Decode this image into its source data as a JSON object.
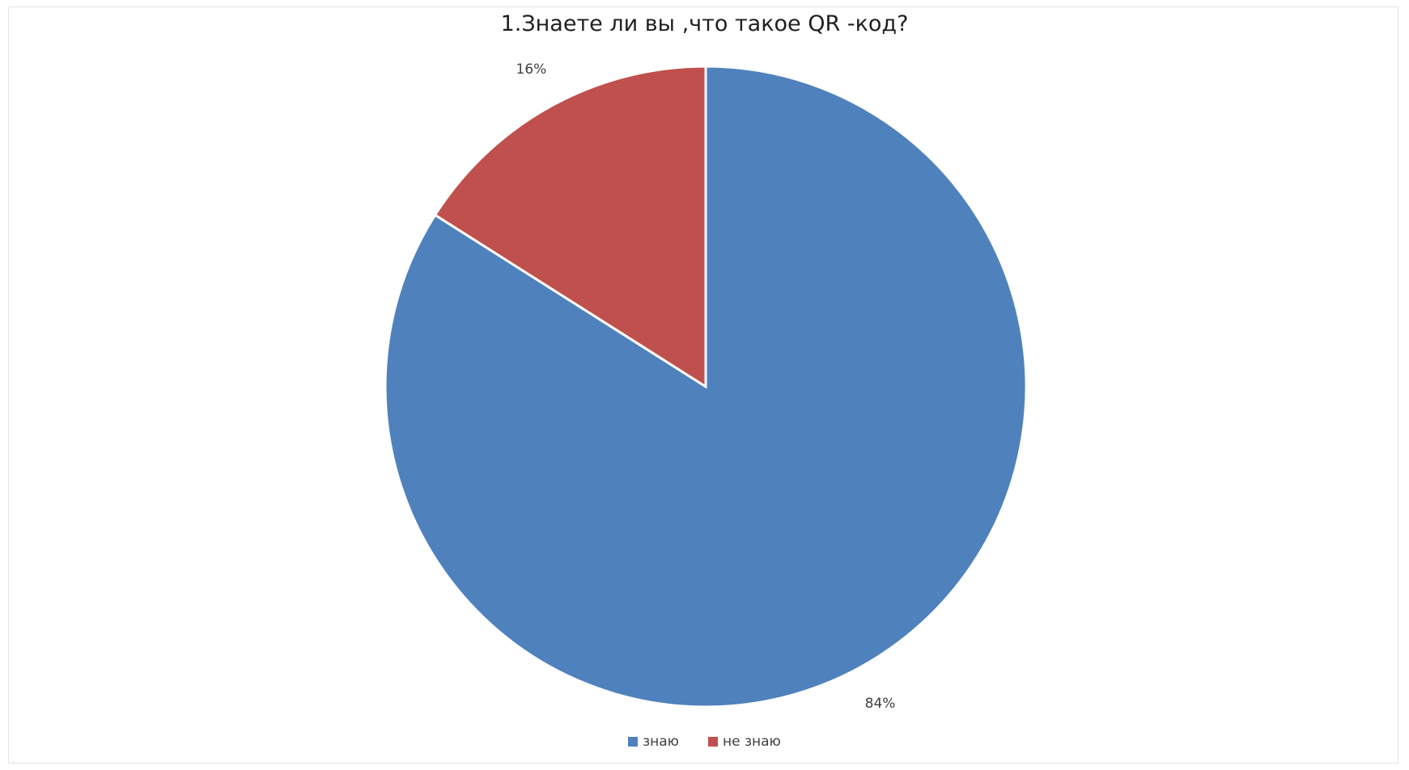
{
  "chart_data": {
    "type": "pie",
    "title": "1.Знаете ли вы ,что такое QR -код?",
    "categories": [
      "знаю",
      "не знаю"
    ],
    "values": [
      84,
      16
    ],
    "data_labels": [
      "84%",
      "16%"
    ],
    "colors": [
      "#4f81bd",
      "#c0504d"
    ],
    "legend": "bottom"
  }
}
